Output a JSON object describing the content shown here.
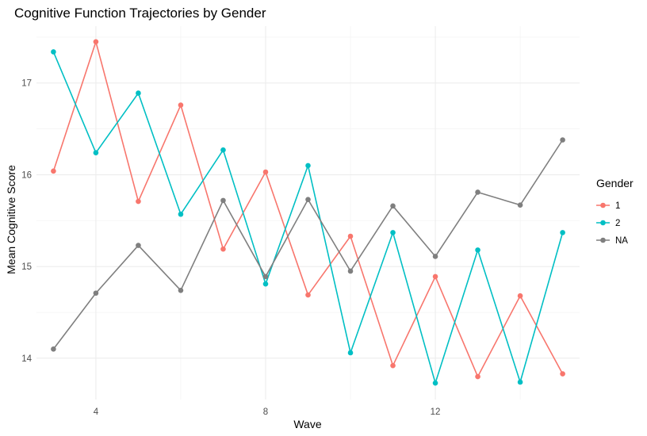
{
  "chart_data": {
    "type": "line",
    "title": "Cognitive Function Trajectories by Gender",
    "xlabel": "Wave",
    "ylabel": "Mean Cognitive Score",
    "xlim": [
      2.6,
      15.4
    ],
    "ylim": [
      13.55,
      17.62
    ],
    "x_ticks": [
      4,
      8,
      12
    ],
    "y_ticks": [
      14,
      15,
      16,
      17
    ],
    "grid": true,
    "legend": {
      "title": "Gender",
      "position": "right"
    },
    "x": [
      3,
      4,
      5,
      6,
      7,
      8,
      9,
      10,
      11,
      12,
      13,
      14,
      15
    ],
    "series": [
      {
        "name": "1",
        "color": "#F8766D",
        "values": [
          16.04,
          17.45,
          15.71,
          16.76,
          15.19,
          16.03,
          14.69,
          15.33,
          13.92,
          14.89,
          13.8,
          14.68,
          13.83
        ]
      },
      {
        "name": "2",
        "color": "#00BFC4",
        "values": [
          17.34,
          16.24,
          16.89,
          15.57,
          16.27,
          14.81,
          16.1,
          14.06,
          15.37,
          13.73,
          15.18,
          13.74,
          15.37
        ]
      },
      {
        "name": "NA",
        "color": "#7F7F7F",
        "values": [
          14.1,
          14.71,
          15.23,
          14.74,
          15.72,
          14.89,
          15.73,
          14.95,
          15.66,
          15.11,
          15.81,
          15.67,
          16.38
        ]
      }
    ]
  }
}
